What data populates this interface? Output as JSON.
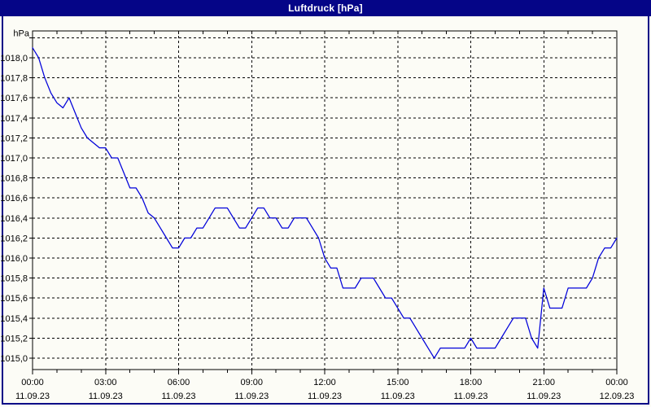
{
  "window": {
    "title": "Luftdruck [hPa]"
  },
  "colors": {
    "titlebar_bg": "#050587",
    "titlebar_text": "#ffffff",
    "frame_border": "#050587",
    "window_bg": "#fcfcf6",
    "plot_border": "#000000",
    "grid": "#000000",
    "series": "#0000da",
    "label_text": "#000000"
  },
  "chart_data": {
    "type": "line",
    "title": "Luftdruck [hPa]",
    "unit_label": "hPa",
    "grid": "dashed",
    "legend": "none",
    "xlim_hours": [
      0,
      24
    ],
    "x_step_hours": 0.25,
    "x_minor_tick_step_hours": 1,
    "x_major_ticks": [
      {
        "hour": 0,
        "time": "00:00",
        "date": "11.09.23"
      },
      {
        "hour": 3,
        "time": "03:00",
        "date": "11.09.23"
      },
      {
        "hour": 6,
        "time": "06:00",
        "date": "11.09.23"
      },
      {
        "hour": 9,
        "time": "09:00",
        "date": "11.09.23"
      },
      {
        "hour": 12,
        "time": "12:00",
        "date": "11.09.23"
      },
      {
        "hour": 15,
        "time": "15:00",
        "date": "11.09.23"
      },
      {
        "hour": 18,
        "time": "18:00",
        "date": "11.09.23"
      },
      {
        "hour": 21,
        "time": "21:00",
        "date": "11.09.23"
      },
      {
        "hour": 24,
        "time": "00:00",
        "date": "12.09.23"
      }
    ],
    "ylim": [
      1014.886,
      1018.268
    ],
    "y_grid_values": [
      1015.0,
      1015.2,
      1015.4,
      1015.6,
      1015.8,
      1016.0,
      1016.2,
      1016.4,
      1016.6,
      1016.8,
      1017.0,
      1017.2,
      1017.4,
      1017.6,
      1017.8,
      1018.0,
      1018.2
    ],
    "y_tick_labels": [
      "1015,0",
      "1015,2",
      "1015,4",
      "1015,6",
      "1015,8",
      "1016,0",
      "1016,2",
      "1016,4",
      "1016,6",
      "1016,8",
      "1017,0",
      "1017,2",
      "1017,4",
      "1017,6",
      "1017,8",
      "1018,0"
    ],
    "values": [
      1018.1,
      1018.0,
      1017.8,
      1017.65,
      1017.55,
      1017.5,
      1017.6,
      1017.45,
      1017.3,
      1017.2,
      1017.15,
      1017.1,
      1017.1,
      1017.0,
      1017.0,
      1016.85,
      1016.7,
      1016.7,
      1016.6,
      1016.45,
      1016.4,
      1016.3,
      1016.2,
      1016.1,
      1016.1,
      1016.2,
      1016.2,
      1016.3,
      1016.3,
      1016.4,
      1016.5,
      1016.5,
      1016.5,
      1016.4,
      1016.3,
      1016.3,
      1016.4,
      1016.5,
      1016.5,
      1016.4,
      1016.4,
      1016.3,
      1016.3,
      1016.4,
      1016.4,
      1016.4,
      1016.3,
      1016.2,
      1016.0,
      1015.9,
      1015.9,
      1015.7,
      1015.7,
      1015.7,
      1015.8,
      1015.8,
      1015.8,
      1015.7,
      1015.6,
      1015.6,
      1015.5,
      1015.4,
      1015.4,
      1015.3,
      1015.2,
      1015.1,
      1015.0,
      1015.1,
      1015.1,
      1015.1,
      1015.1,
      1015.1,
      1015.2,
      1015.1,
      1015.1,
      1015.1,
      1015.1,
      1015.2,
      1015.3,
      1015.4,
      1015.4,
      1015.4,
      1015.2,
      1015.1,
      1015.7,
      1015.5,
      1015.5,
      1015.5,
      1015.7,
      1015.7,
      1015.7,
      1015.7,
      1015.8,
      1016.0,
      1016.1,
      1016.1,
      1016.2
    ]
  }
}
